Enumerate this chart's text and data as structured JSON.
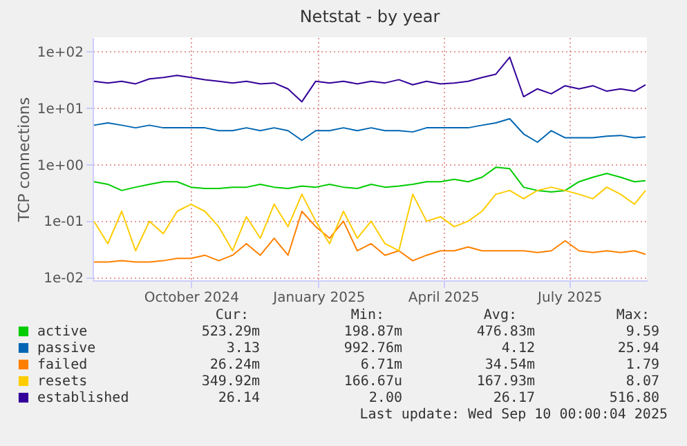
{
  "chart_data": {
    "type": "line",
    "title": "Netstat - by year",
    "ylabel": "TCP connections",
    "log": true,
    "grid": true,
    "legend": "bottom",
    "line_style": "solid",
    "marker": "none",
    "ylim": [
      0.009,
      180
    ],
    "yticks": [
      {
        "value": 0.01,
        "label": "1e-02"
      },
      {
        "value": 0.1,
        "label": "1e-01"
      },
      {
        "value": 1,
        "label": "1e+00"
      },
      {
        "value": 10,
        "label": "1e+01"
      },
      {
        "value": 100,
        "label": "1e+02"
      }
    ],
    "xlim": [
      "2024-08-06",
      "2025-09-10"
    ],
    "xticks": [
      {
        "value": "2024-10-16",
        "label": "October 2024"
      },
      {
        "value": "2025-01-16",
        "label": "January 2025"
      },
      {
        "value": "2025-04-16",
        "label": "April 2025"
      },
      {
        "value": "2025-07-16",
        "label": "July 2025"
      }
    ],
    "x": [
      "2024-08-07",
      "2024-08-17",
      "2024-08-27",
      "2024-09-06",
      "2024-09-16",
      "2024-09-26",
      "2024-10-06",
      "2024-10-16",
      "2024-10-26",
      "2024-11-05",
      "2024-11-15",
      "2024-11-25",
      "2024-12-05",
      "2024-12-15",
      "2024-12-25",
      "2025-01-04",
      "2025-01-14",
      "2025-01-24",
      "2025-02-03",
      "2025-02-13",
      "2025-02-23",
      "2025-03-05",
      "2025-03-15",
      "2025-03-25",
      "2025-04-04",
      "2025-04-14",
      "2025-04-24",
      "2025-05-04",
      "2025-05-14",
      "2025-05-24",
      "2025-06-03",
      "2025-06-13",
      "2025-06-23",
      "2025-07-03",
      "2025-07-13",
      "2025-07-23",
      "2025-08-02",
      "2025-08-12",
      "2025-08-22",
      "2025-09-01",
      "2025-09-09"
    ],
    "series": [
      {
        "name": "active",
        "color": "#00cc00",
        "values": [
          0.5,
          0.45,
          0.35,
          0.4,
          0.45,
          0.5,
          0.5,
          0.4,
          0.38,
          0.38,
          0.4,
          0.4,
          0.45,
          0.4,
          0.38,
          0.42,
          0.4,
          0.45,
          0.4,
          0.38,
          0.45,
          0.4,
          0.42,
          0.45,
          0.5,
          0.5,
          0.55,
          0.5,
          0.6,
          0.9,
          0.85,
          0.4,
          0.35,
          0.33,
          0.35,
          0.5,
          0.6,
          0.7,
          0.6,
          0.5,
          0.52
        ]
      },
      {
        "name": "passive",
        "color": "#0066b3",
        "values": [
          5,
          5.5,
          5,
          4.5,
          5,
          4.5,
          4.5,
          4.5,
          4.5,
          4,
          4,
          4.5,
          4,
          4.5,
          4,
          2.7,
          4,
          4,
          4.5,
          4,
          4.5,
          4,
          4,
          3.8,
          4.5,
          4.5,
          4.5,
          4.5,
          5,
          5.5,
          6.5,
          3.5,
          2.5,
          4,
          3,
          3,
          3,
          3.2,
          3.3,
          3,
          3.1
        ]
      },
      {
        "name": "failed",
        "color": "#ff8000",
        "values": [
          0.019,
          0.019,
          0.02,
          0.019,
          0.019,
          0.02,
          0.022,
          0.022,
          0.025,
          0.02,
          0.025,
          0.04,
          0.025,
          0.05,
          0.025,
          0.15,
          0.08,
          0.05,
          0.1,
          0.03,
          0.04,
          0.025,
          0.03,
          0.02,
          0.025,
          0.03,
          0.03,
          0.035,
          0.03,
          0.03,
          0.03,
          0.03,
          0.028,
          0.03,
          0.045,
          0.03,
          0.028,
          0.03,
          0.028,
          0.03,
          0.026
        ]
      },
      {
        "name": "resets",
        "color": "#ffcc00",
        "values": [
          0.1,
          0.04,
          0.15,
          0.03,
          0.1,
          0.06,
          0.15,
          0.2,
          0.15,
          0.08,
          0.03,
          0.12,
          0.05,
          0.2,
          0.08,
          0.3,
          0.1,
          0.04,
          0.15,
          0.05,
          0.1,
          0.04,
          0.03,
          0.3,
          0.1,
          0.12,
          0.08,
          0.1,
          0.15,
          0.3,
          0.35,
          0.25,
          0.35,
          0.4,
          0.35,
          0.3,
          0.25,
          0.4,
          0.3,
          0.2,
          0.35
        ]
      },
      {
        "name": "established",
        "color": "#330099",
        "values": [
          30,
          28,
          30,
          27,
          33,
          35,
          38,
          35,
          32,
          30,
          28,
          30,
          27,
          28,
          22,
          13,
          30,
          28,
          30,
          27,
          30,
          28,
          32,
          26,
          30,
          27,
          28,
          30,
          35,
          40,
          80,
          16,
          22,
          18,
          25,
          22,
          25,
          20,
          22,
          20,
          26
        ]
      }
    ],
    "annotations": [
      "Cur:",
      "Min:",
      "Avg:",
      "Max:",
      "523.29m",
      "198.87m",
      "476.83m",
      "9.59",
      "3.13",
      "992.76m",
      "4.12",
      "25.94",
      "26.24m",
      "6.71m",
      "34.54m",
      "1.79",
      "349.92m",
      "166.67u",
      "167.93m",
      "8.07",
      "26.14",
      "2.00",
      "26.17",
      "516.80",
      "Last update: Wed Sep 10 00:00:04 2025"
    ]
  }
}
